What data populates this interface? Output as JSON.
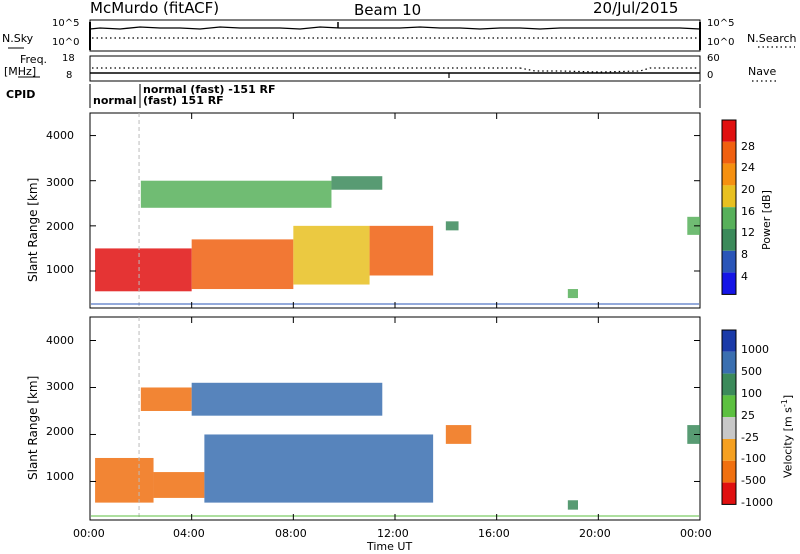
{
  "header": {
    "station": "McMurdo (fitACF)",
    "beam": "Beam 10",
    "date": "20/Jul/2015"
  },
  "top_panels": {
    "nsky_label": "N.Sky",
    "nsearch_label": "N.Search",
    "nsky_ticks": [
      "10^5",
      "10^0"
    ],
    "nsearch_ticks": [
      "10^5",
      "10^0"
    ],
    "freq_label_1": "Freq.",
    "freq_label_2": "[MHz]",
    "freq_ticks": [
      "18",
      "8"
    ],
    "nave_label": "Nave",
    "nave_ticks": [
      "60",
      "0"
    ],
    "cpid_label": "CPID",
    "cpid_normal": "normal",
    "cpid_line1": "normal (fast) -151 RF",
    "cpid_line2": "(fast) 151 RF"
  },
  "axes": {
    "ylabel": "Slant Range [km]",
    "xlabel": "Time UT",
    "x_ticks": [
      "00:00",
      "04:00",
      "08:00",
      "12:00",
      "16:00",
      "20:00",
      "00:00"
    ],
    "y_ticks": [
      "1000",
      "2000",
      "3000",
      "4000"
    ]
  },
  "colorbars": {
    "power": {
      "label": "Power [dB]",
      "ticks": [
        "4",
        "8",
        "12",
        "16",
        "20",
        "24",
        "28"
      ],
      "colors": [
        "#1515e6",
        "#2a55b8",
        "#3b8a5a",
        "#57b05a",
        "#e8c020",
        "#f59010",
        "#f06010",
        "#e01010"
      ]
    },
    "velocity": {
      "label": "Velocity [m s",
      "label_sup": "-1",
      "label_end": "]",
      "ticks": [
        "1000",
        "500",
        "100",
        "25",
        "-25",
        "-100",
        "-500",
        "-1000"
      ],
      "colors": [
        "#1a3aa8",
        "#3a6fb0",
        "#3b8a5a",
        "#5cc040",
        "#c8c8c8",
        "#f5a020",
        "#f07010",
        "#e01010"
      ]
    }
  },
  "chart_data": [
    {
      "type": "heatmap",
      "title": "Power",
      "xlabel": "Time UT",
      "ylabel": "Slant Range [km]",
      "xlim": [
        "00:00",
        "24:00"
      ],
      "ylim": [
        180,
        4500
      ],
      "colorbar": "Power [dB]",
      "colorbar_range": [
        0,
        30
      ],
      "regions": [
        {
          "t_start": 0.2,
          "t_end": 4.0,
          "range_low": 550,
          "range_high": 1500,
          "power_db": 28
        },
        {
          "t_start": 4.0,
          "t_end": 8.0,
          "range_low": 600,
          "range_high": 1700,
          "power_db": 24
        },
        {
          "t_start": 8.0,
          "t_end": 11.0,
          "range_low": 700,
          "range_high": 2000,
          "power_db": 16
        },
        {
          "t_start": 11.0,
          "t_end": 13.5,
          "range_low": 900,
          "range_high": 2000,
          "power_db": 24
        },
        {
          "t_start": 2.0,
          "t_end": 9.5,
          "range_low": 2400,
          "range_high": 3000,
          "power_db": 12
        },
        {
          "t_start": 9.5,
          "t_end": 11.5,
          "range_low": 2800,
          "range_high": 3100,
          "power_db": 8
        },
        {
          "t_start": 14.0,
          "t_end": 14.5,
          "range_low": 1900,
          "range_high": 2100,
          "power_db": 8
        },
        {
          "t_start": 18.8,
          "t_end": 19.2,
          "range_low": 400,
          "range_high": 600,
          "power_db": 12
        },
        {
          "t_start": 23.5,
          "t_end": 24.0,
          "range_low": 1800,
          "range_high": 2200,
          "power_db": 12
        }
      ]
    },
    {
      "type": "heatmap",
      "title": "Velocity",
      "xlabel": "Time UT",
      "ylabel": "Slant Range [km]",
      "xlim": [
        "00:00",
        "24:00"
      ],
      "ylim": [
        180,
        4500
      ],
      "colorbar": "Velocity [m s-1]",
      "colorbar_range": [
        -1000,
        1000
      ],
      "regions": [
        {
          "t_start": 0.2,
          "t_end": 2.5,
          "range_low": 550,
          "range_high": 1500,
          "velocity": -300
        },
        {
          "t_start": 2.5,
          "t_end": 4.5,
          "range_low": 650,
          "range_high": 1200,
          "velocity": -150
        },
        {
          "t_start": 4.5,
          "t_end": 13.5,
          "range_low": 550,
          "range_high": 2000,
          "velocity": 300
        },
        {
          "t_start": 2.0,
          "t_end": 4.0,
          "range_low": 2500,
          "range_high": 3000,
          "velocity": -200
        },
        {
          "t_start": 4.0,
          "t_end": 11.5,
          "range_low": 2400,
          "range_high": 3100,
          "velocity": 400
        },
        {
          "t_start": 14.0,
          "t_end": 15.0,
          "range_low": 1800,
          "range_high": 2200,
          "velocity": -200
        },
        {
          "t_start": 18.8,
          "t_end": 19.2,
          "range_low": 400,
          "range_high": 600,
          "velocity": 200
        },
        {
          "t_start": 23.5,
          "t_end": 24.0,
          "range_low": 1800,
          "range_high": 2200,
          "velocity": 100
        }
      ]
    }
  ]
}
